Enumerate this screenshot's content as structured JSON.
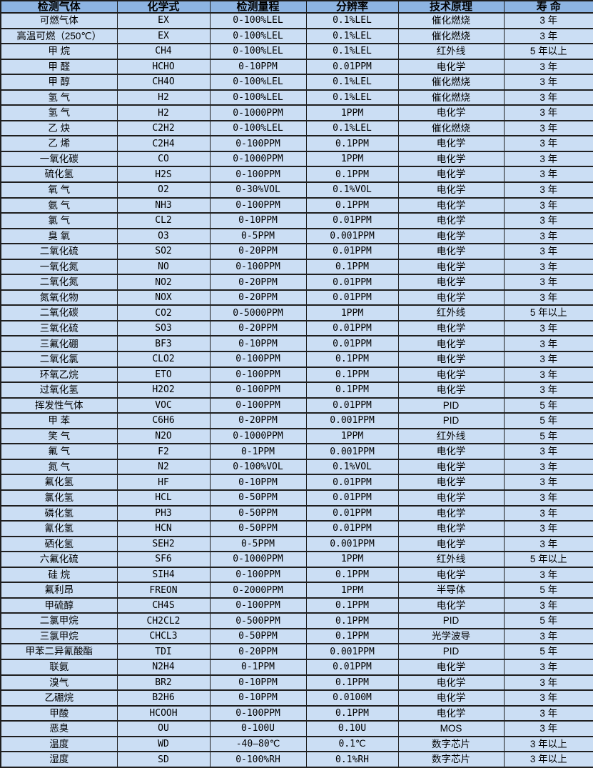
{
  "colors": {
    "header_bg": "#8db4e2",
    "row_bg": "#cbdef4",
    "border": "#1f1f1f",
    "text": "#000000"
  },
  "table": {
    "columns": [
      "检测气体",
      "化学式",
      "检测量程",
      "分辨率",
      "技术原理",
      "寿 命"
    ],
    "rows": [
      [
        "可燃气体",
        "EX",
        "0-100%LEL",
        "0.1%LEL",
        "催化燃烧",
        "3 年"
      ],
      [
        "高温可燃（250℃）",
        "EX",
        "0-100%LEL",
        "0.1%LEL",
        "催化燃烧",
        "3 年"
      ],
      [
        "甲 烷",
        "CH4",
        "0-100%LEL",
        "0.1%LEL",
        "红外线",
        "5 年以上"
      ],
      [
        "甲 醛",
        "HCHO",
        "0-10PPM",
        "0.01PPM",
        "电化学",
        "3 年"
      ],
      [
        "甲 醇",
        "CH4O",
        "0-100%LEL",
        "0.1%LEL",
        "催化燃烧",
        "3 年"
      ],
      [
        "氢 气",
        "H2",
        "0-100%LEL",
        "0.1%LEL",
        "催化燃烧",
        "3 年"
      ],
      [
        "氢 气",
        "H2",
        "0-1000PPM",
        "1PPM",
        "电化学",
        "3 年"
      ],
      [
        "乙 炔",
        "C2H2",
        "0-100%LEL",
        "0.1%LEL",
        "催化燃烧",
        "3 年"
      ],
      [
        "乙 烯",
        "C2H4",
        "0-100PPM",
        "0.1PPM",
        "电化学",
        "3 年"
      ],
      [
        "一氧化碳",
        "CO",
        "0-1000PPM",
        "1PPM",
        "电化学",
        "3 年"
      ],
      [
        "硫化氢",
        "H2S",
        "0-100PPM",
        "0.1PPM",
        "电化学",
        "3 年"
      ],
      [
        "氧 气",
        "O2",
        "0-30%VOL",
        "0.1%VOL",
        "电化学",
        "3 年"
      ],
      [
        "氨 气",
        "NH3",
        "0-100PPM",
        "0.1PPM",
        "电化学",
        "3 年"
      ],
      [
        "氯 气",
        "CL2",
        "0-10PPM",
        "0.01PPM",
        "电化学",
        "3 年"
      ],
      [
        "臭 氧",
        "O3",
        "0-5PPM",
        "0.001PPM",
        "电化学",
        "3 年"
      ],
      [
        "二氧化硫",
        "SO2",
        "0-20PPM",
        "0.01PPM",
        "电化学",
        "3 年"
      ],
      [
        "一氧化氮",
        "NO",
        "0-100PPM",
        "0.1PPM",
        "电化学",
        "3 年"
      ],
      [
        "二氧化氮",
        "NO2",
        "0-20PPM",
        "0.01PPM",
        "电化学",
        "3 年"
      ],
      [
        "氮氧化物",
        "NOX",
        "0-20PPM",
        "0.01PPM",
        "电化学",
        "3 年"
      ],
      [
        "二氧化碳",
        "CO2",
        "0-5000PPM",
        "1PPM",
        "红外线",
        "5 年以上"
      ],
      [
        "三氧化硫",
        "SO3",
        "0-20PPM",
        "0.01PPM",
        "电化学",
        "3 年"
      ],
      [
        "三氟化硼",
        "BF3",
        "0-10PPM",
        "0.01PPM",
        "电化学",
        "3 年"
      ],
      [
        "二氧化氯",
        "CLO2",
        "0-100PPM",
        "0.1PPM",
        "电化学",
        "3 年"
      ],
      [
        "环氧乙烷",
        "ETO",
        "0-100PPM",
        "0.1PPM",
        "电化学",
        "3 年"
      ],
      [
        "过氧化氢",
        "H2O2",
        "0-100PPM",
        "0.1PPM",
        "电化学",
        "3 年"
      ],
      [
        "挥发性气体",
        "VOC",
        "0-100PPM",
        "0.01PPM",
        "PID",
        "5 年"
      ],
      [
        "甲 苯",
        "C6H6",
        "0-20PPM",
        "0.001PPM",
        "PID",
        "5 年"
      ],
      [
        "笑 气",
        "N2O",
        "0-1000PPM",
        "1PPM",
        "红外线",
        "5 年"
      ],
      [
        "氟 气",
        "F2",
        "0-1PPM",
        "0.001PPM",
        "电化学",
        "3 年"
      ],
      [
        "氮 气",
        "N2",
        "0-100%VOL",
        "0.1%VOL",
        "电化学",
        "3 年"
      ],
      [
        "氟化氢",
        "HF",
        "0-10PPM",
        "0.01PPM",
        "电化学",
        "3 年"
      ],
      [
        "氯化氢",
        "HCL",
        "0-50PPM",
        "0.01PPM",
        "电化学",
        "3 年"
      ],
      [
        "磷化氢",
        "PH3",
        "0-50PPM",
        "0.01PPM",
        "电化学",
        "3 年"
      ],
      [
        "氰化氢",
        "HCN",
        "0-50PPM",
        "0.01PPM",
        "电化学",
        "3 年"
      ],
      [
        "硒化氢",
        "SEH2",
        "0-5PPM",
        "0.001PPM",
        "电化学",
        "3 年"
      ],
      [
        "六氟化硫",
        "SF6",
        "0-1000PPM",
        "1PPM",
        "红外线",
        "5 年以上"
      ],
      [
        "硅 烷",
        "SIH4",
        "0-100PPM",
        "0.1PPM",
        "电化学",
        "3 年"
      ],
      [
        "氟利昂",
        "FREON",
        "0-2000PPM",
        "1PPM",
        "半导体",
        "5 年"
      ],
      [
        "甲硫醇",
        "CH4S",
        "0-100PPM",
        "0.1PPM",
        "电化学",
        "3 年"
      ],
      [
        "二氯甲烷",
        "CH2CL2",
        "0-500PPM",
        "0.1PPM",
        "PID",
        "5 年"
      ],
      [
        "三氯甲烷",
        "CHCL3",
        "0-50PPM",
        "0.1PPM",
        "光学波导",
        "3 年"
      ],
      [
        "甲苯二异氰酸酯",
        "TDI",
        "0-20PPM",
        "0.001PPM",
        "PID",
        "5 年"
      ],
      [
        "联氨",
        "N2H4",
        "0-1PPM",
        "0.01PPM",
        "电化学",
        "3 年"
      ],
      [
        "溴气",
        "BR2",
        "0-10PPM",
        "0.1PPM",
        "电化学",
        "3 年"
      ],
      [
        "乙硼烷",
        "B2H6",
        "0-10PPM",
        "0.0100M",
        "电化学",
        "3 年"
      ],
      [
        "甲酸",
        "HCOOH",
        "0-100PPM",
        "0.1PPM",
        "电化学",
        "3 年"
      ],
      [
        "恶臭",
        "OU",
        "0-100U",
        "0.10U",
        "MOS",
        "3 年"
      ],
      [
        "温度",
        "WD",
        "-40—80℃",
        "0.1℃",
        "数字芯片",
        "3 年以上"
      ],
      [
        "湿度",
        "SD",
        "0-100%RH",
        "0.1%RH",
        "数字芯片",
        "3 年以上"
      ]
    ]
  }
}
